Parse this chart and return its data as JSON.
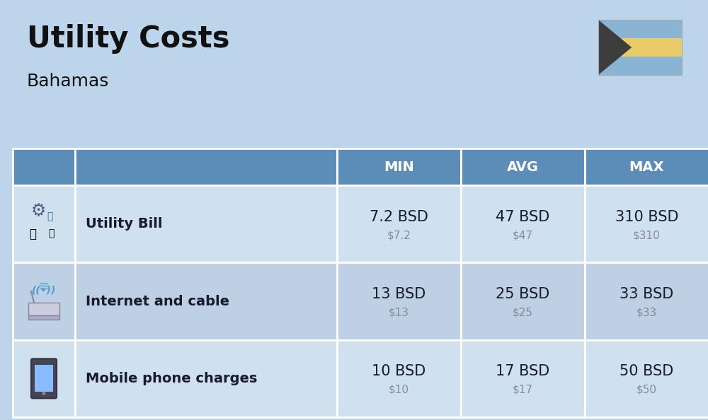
{
  "title": "Utility Costs",
  "subtitle": "Bahamas",
  "background_color": "#bdd5ea",
  "header_bg_color": "#5b8db8",
  "header_text_color": "#ffffff",
  "row_bg_color_odd": "#cfe0ef",
  "row_bg_color_even": "#bdd0e4",
  "cell_border_color": "#ffffff",
  "header_labels": [
    "MIN",
    "AVG",
    "MAX"
  ],
  "rows": [
    {
      "label": "Utility Bill",
      "icon": "utility",
      "min_bsd": "7.2 BSD",
      "min_usd": "$7.2",
      "avg_bsd": "47 BSD",
      "avg_usd": "$47",
      "max_bsd": "310 BSD",
      "max_usd": "$310"
    },
    {
      "label": "Internet and cable",
      "icon": "internet",
      "min_bsd": "13 BSD",
      "min_usd": "$13",
      "avg_bsd": "25 BSD",
      "avg_usd": "$25",
      "max_bsd": "33 BSD",
      "max_usd": "$33"
    },
    {
      "label": "Mobile phone charges",
      "icon": "mobile",
      "min_bsd": "10 BSD",
      "min_usd": "$10",
      "avg_bsd": "17 BSD",
      "avg_usd": "$17",
      "max_bsd": "50 BSD",
      "max_usd": "$50"
    }
  ],
  "flag_blue": "#8ab4d4",
  "flag_yellow": "#e8cc6a",
  "flag_black": "#3d3d3d",
  "title_fontsize": 30,
  "subtitle_fontsize": 18,
  "header_fontsize": 14,
  "label_fontsize": 14,
  "value_fontsize": 15,
  "subvalue_fontsize": 11,
  "usd_text_color": "#8a8a9a",
  "bsd_text_color": "#1a1a2e",
  "label_text_color": "#1a1a2e"
}
